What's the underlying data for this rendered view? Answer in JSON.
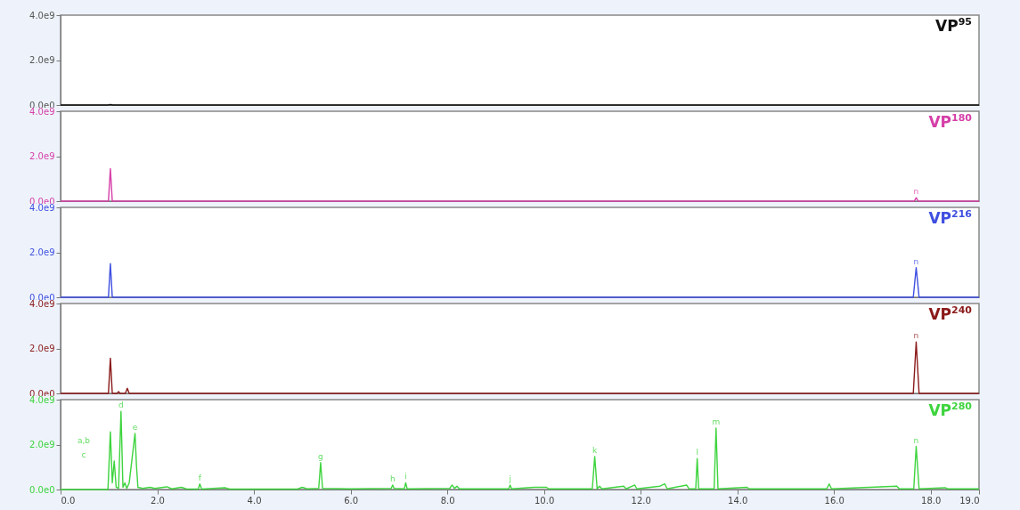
{
  "chart_data": [
    {
      "type": "line",
      "title": "VP$^{95}$",
      "x": [
        0,
        0.98,
        1.03,
        1.08,
        19
      ],
      "series": [
        {
          "color": "#111111",
          "values": [
            0,
            0,
            20000000,
            0,
            0
          ]
        }
      ],
      "xlim": [
        0,
        19
      ],
      "ylim": [
        0,
        4000000000
      ],
      "yticks": [
        {
          "value": 0,
          "label": "0.0e0"
        },
        {
          "value": 2000000000,
          "label": "2.0e9"
        },
        {
          "value": 4000000000,
          "label": "4.0e9"
        }
      ],
      "tick_labels": "y",
      "grid": false
    },
    {
      "type": "line",
      "title": "VP$^{180}$",
      "x": [
        0,
        0.99,
        1.03,
        1.07,
        1.2,
        17.66,
        17.7,
        17.74,
        19
      ],
      "series": [
        {
          "color": "#d63fa8",
          "values": [
            0,
            0,
            1450000000,
            0,
            0,
            0,
            150000000,
            0,
            0
          ]
        }
      ],
      "xlim": [
        0,
        19
      ],
      "ylim": [
        0,
        4000000000
      ],
      "yticks": [
        {
          "value": 0,
          "label": "0.0e0"
        },
        {
          "value": 2000000000,
          "label": "2.0e9"
        },
        {
          "value": 4000000000,
          "label": "4.0e9"
        }
      ],
      "tick_labels": "y",
      "annotations": [
        {
          "text": "n",
          "x": 17.7,
          "y": 150000000
        }
      ],
      "grid": false
    },
    {
      "type": "line",
      "title": "VP$^{216}$",
      "x": [
        0,
        0.99,
        1.03,
        1.07,
        1.2,
        17.64,
        17.7,
        17.76,
        19
      ],
      "series": [
        {
          "color": "#3f4fe0",
          "values": [
            0,
            0,
            1500000000,
            0,
            0,
            0,
            1320000000,
            0,
            0
          ]
        }
      ],
      "xlim": [
        0,
        19
      ],
      "ylim": [
        0,
        4000000000
      ],
      "yticks": [
        {
          "value": 0,
          "label": "0.0e0"
        },
        {
          "value": 2000000000,
          "label": "2.0e9"
        },
        {
          "value": 4000000000,
          "label": "4.0e9"
        }
      ],
      "tick_labels": "y",
      "annotations": [
        {
          "text": "n",
          "x": 17.7,
          "y": 1320000000
        }
      ],
      "grid": false
    },
    {
      "type": "line",
      "title": "VP$^{240}$",
      "x": [
        0,
        0.99,
        1.03,
        1.07,
        1.17,
        1.2,
        1.23,
        1.34,
        1.38,
        1.42,
        17.64,
        17.7,
        17.76,
        19
      ],
      "series": [
        {
          "color": "#8b1a1a",
          "values": [
            0,
            0,
            1570000000,
            0,
            0,
            80000000,
            0,
            0,
            230000000,
            0,
            0,
            2290000000,
            0,
            0
          ]
        }
      ],
      "xlim": [
        0,
        19
      ],
      "ylim": [
        0,
        4000000000
      ],
      "yticks": [
        {
          "value": 0,
          "label": "0.0e0"
        },
        {
          "value": 2000000000,
          "label": "2.0e9"
        },
        {
          "value": 4000000000,
          "label": "4.0e9"
        }
      ],
      "tick_labels": "y",
      "annotations": [
        {
          "text": "n",
          "x": 17.7,
          "y": 2290000000
        }
      ],
      "grid": false
    },
    {
      "type": "line",
      "title": "VP$^{280}$",
      "x": [
        0,
        0.98,
        1.03,
        1.07,
        1.11,
        1.15,
        1.2,
        1.25,
        1.29,
        1.33,
        1.37,
        1.42,
        1.48,
        1.54,
        1.57,
        1.6,
        1.7,
        1.85,
        1.95,
        2.2,
        2.3,
        2.5,
        2.6,
        2.85,
        2.88,
        2.92,
        3.4,
        3.5,
        4.9,
        5.0,
        5.1,
        5.34,
        5.38,
        5.42,
        6.0,
        6.84,
        6.87,
        6.9,
        7.11,
        7.14,
        7.17,
        8.05,
        8.1,
        8.15,
        8.2,
        8.25,
        9.27,
        9.3,
        9.33,
        9.8,
        10.05,
        10.1,
        11.0,
        11.05,
        11.1,
        11.15,
        11.2,
        11.65,
        11.7,
        11.88,
        11.92,
        12.4,
        12.5,
        12.55,
        12.95,
        13.0,
        13.14,
        13.17,
        13.2,
        13.52,
        13.56,
        13.6,
        14.2,
        14.25,
        15.85,
        15.9,
        15.95,
        17.3,
        17.35,
        17.65,
        17.7,
        17.76,
        18.3,
        18.35,
        19
      ],
      "series": [
        {
          "color": "#3ed43e",
          "values": [
            0,
            0,
            2570000000,
            300000000,
            1270000000,
            100000000,
            50000000,
            3480000000,
            100000000,
            300000000,
            50000000,
            300000000,
            1400000000,
            2500000000,
            1070000000,
            100000000,
            50000000,
            100000000,
            50000000,
            120000000,
            30000000,
            100000000,
            30000000,
            20000000,
            250000000,
            20000000,
            80000000,
            20000000,
            20000000,
            100000000,
            30000000,
            50000000,
            1200000000,
            50000000,
            30000000,
            50000000,
            200000000,
            50000000,
            30000000,
            300000000,
            30000000,
            50000000,
            200000000,
            50000000,
            150000000,
            30000000,
            30000000,
            200000000,
            30000000,
            100000000,
            100000000,
            30000000,
            30000000,
            1470000000,
            30000000,
            150000000,
            30000000,
            150000000,
            30000000,
            200000000,
            30000000,
            150000000,
            250000000,
            30000000,
            200000000,
            30000000,
            30000000,
            1380000000,
            30000000,
            30000000,
            2730000000,
            30000000,
            100000000,
            30000000,
            30000000,
            250000000,
            30000000,
            150000000,
            30000000,
            30000000,
            1920000000,
            30000000,
            80000000,
            30000000,
            30000000
          ]
        }
      ],
      "xlim": [
        0,
        19
      ],
      "xticks": [
        {
          "value": 0,
          "label": "0.0"
        },
        {
          "value": 2,
          "label": "2.0"
        },
        {
          "value": 4,
          "label": "4.0"
        },
        {
          "value": 6,
          "label": "6.0"
        },
        {
          "value": 8,
          "label": "8.0"
        },
        {
          "value": 10,
          "label": "10.0"
        },
        {
          "value": 12,
          "label": "12.0"
        },
        {
          "value": 14,
          "label": "14.0"
        },
        {
          "value": 16,
          "label": "16.0"
        },
        {
          "value": 18,
          "label": "18.0"
        },
        {
          "value": 19,
          "label": "19.0"
        }
      ],
      "ylim": [
        0,
        4000000000
      ],
      "yticks": [
        {
          "value": 0,
          "label": "0.0e0"
        },
        {
          "value": 2000000000,
          "label": "2.0e9"
        },
        {
          "value": 4000000000,
          "label": "4.0e9"
        }
      ],
      "annotations": [
        "a,b",
        "c",
        {
          "text": "d",
          "x": 1.25,
          "y": 3480000000
        },
        {
          "text": "e",
          "x": 1.54,
          "y": 2500000000
        },
        {
          "text": "f",
          "x": 2.88,
          "y": 250000000
        },
        {
          "text": "g",
          "x": 5.38,
          "y": 1200000000
        },
        {
          "text": "h",
          "x": 6.87,
          "y": 200000000
        },
        {
          "text": "i",
          "x": 7.14,
          "y": 300000000
        },
        {
          "text": "j",
          "x": 9.3,
          "y": 200000000
        },
        {
          "text": "k",
          "x": 11.05,
          "y": 1470000000
        },
        {
          "text": "l",
          "x": 13.17,
          "y": 1380000000
        },
        {
          "text": "m",
          "x": 13.56,
          "y": 2730000000
        },
        {
          "text": "n",
          "x": 17.7,
          "y": 1920000000
        }
      ],
      "grid": false
    }
  ]
}
